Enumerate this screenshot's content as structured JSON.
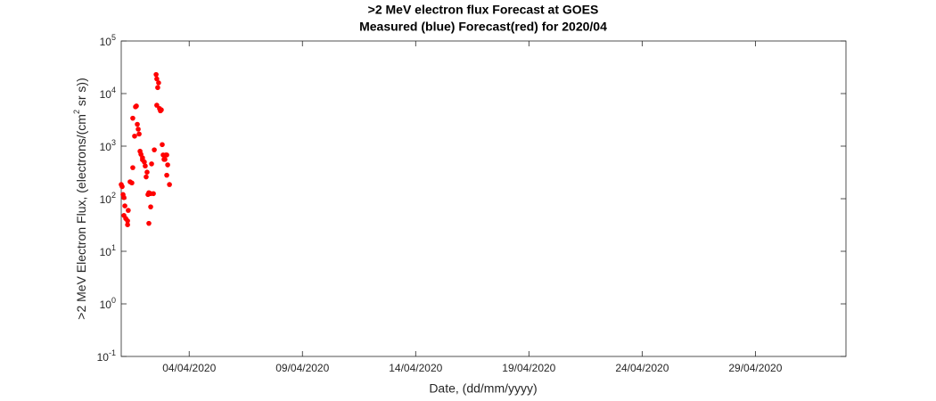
{
  "chart_data": {
    "type": "scatter",
    "title": ">2 MeV electron flux Forecast at GOES",
    "subtitle": "Measured (blue) Forecast(red) for 2020/04",
    "xlabel": "Date, (dd/mm/yyyy)",
    "ylabel": ">2 MeV Electron Flux, (electrons/(cm^2 sr s))",
    "ylog": true,
    "color": "#ff0000",
    "xlim": [
      1,
      33
    ],
    "xticks": [
      {
        "value": 4,
        "label": "04/04/2020"
      },
      {
        "value": 9,
        "label": "09/04/2020"
      },
      {
        "value": 14,
        "label": "14/04/2020"
      },
      {
        "value": 19,
        "label": "19/04/2020"
      },
      {
        "value": 24,
        "label": "24/04/2020"
      },
      {
        "value": 29,
        "label": "29/04/2020"
      }
    ],
    "ylim": [
      0.1,
      100000
    ],
    "yticks": [
      {
        "value": 0.1,
        "label": "10^-1"
      },
      {
        "value": 1,
        "label": "10^0"
      },
      {
        "value": 10,
        "label": "10^1"
      },
      {
        "value": 100,
        "label": "10^2"
      },
      {
        "value": 1000,
        "label": "10^3"
      },
      {
        "value": 10000,
        "label": "10^4"
      },
      {
        "value": 100000,
        "label": "10^5"
      }
    ],
    "x": [
      1.0,
      1.04,
      1.08,
      1.12,
      1.16,
      1.12,
      1.2,
      1.28,
      1.28,
      1.31,
      1.39,
      1.47,
      1.51,
      1.51,
      1.59,
      1.63,
      1.67,
      1.71,
      1.75,
      1.79,
      1.83,
      1.87,
      1.94,
      1.94,
      2.02,
      2.06,
      2.1,
      2.14,
      2.18,
      2.22,
      2.22,
      2.3,
      2.3,
      2.34,
      2.42,
      2.46,
      2.54,
      2.57,
      2.65,
      2.61,
      2.57,
      2.69,
      2.73,
      2.77,
      2.81,
      2.85,
      2.89,
      2.93,
      2.97,
      3.01,
      3.05,
      3.01,
      3.13
    ],
    "values": [
      186,
      170,
      120,
      105,
      73,
      48,
      42,
      38,
      32,
      60,
      210,
      200,
      390,
      3400,
      1550,
      5600,
      5800,
      2600,
      2100,
      1700,
      800,
      700,
      550,
      600,
      500,
      420,
      260,
      320,
      120,
      130,
      34,
      70,
      125,
      460,
      125,
      850,
      23000,
      19000,
      16000,
      13000,
      6000,
      5200,
      4700,
      4900,
      1070,
      680,
      560,
      560,
      680,
      680,
      440,
      280,
      186
    ]
  }
}
